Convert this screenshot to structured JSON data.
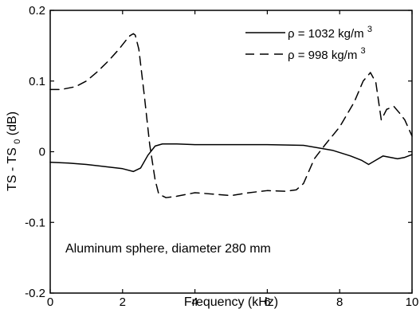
{
  "chart_data": {
    "type": "line",
    "title": "",
    "xlabel": "Frequency (kHz)",
    "ylabel": {
      "part1": "TS - TS",
      "subscript": "0",
      "part2": " (dB)"
    },
    "xlim": [
      0,
      10
    ],
    "ylim": [
      -0.2,
      0.2
    ],
    "xticks": [
      0,
      2,
      4,
      6,
      8,
      10
    ],
    "yticks": [
      -0.2,
      -0.1,
      0,
      0.1,
      0.2
    ],
    "xtick_labels": [
      "0",
      "2",
      "4",
      "6",
      "8",
      "10"
    ],
    "ytick_labels": [
      "-0.2",
      "-0.1",
      "0",
      "0.1",
      "0.2"
    ],
    "grid": false,
    "legend_position": "top-right",
    "series": [
      {
        "name": "ρ = 1032 kg/m3",
        "legend_prefix": "ρ = 1032 kg/m",
        "legend_superscript": "3",
        "style": "solid",
        "color": "#000000",
        "x": [
          0,
          0.5,
          1.0,
          1.5,
          2.0,
          2.3,
          2.5,
          2.7,
          2.9,
          3.1,
          3.5,
          4.0,
          5.0,
          6.0,
          7.0,
          7.8,
          8.3,
          8.6,
          8.8,
          9.0,
          9.2,
          9.4,
          9.6,
          9.8,
          10.0
        ],
        "y": [
          -0.015,
          -0.016,
          -0.018,
          -0.021,
          -0.024,
          -0.028,
          -0.023,
          -0.005,
          0.008,
          0.011,
          0.011,
          0.01,
          0.01,
          0.01,
          0.009,
          0.002,
          -0.006,
          -0.012,
          -0.018,
          -0.012,
          -0.006,
          -0.008,
          -0.01,
          -0.008,
          -0.004
        ]
      },
      {
        "name": "ρ = 998 kg/m3",
        "legend_prefix": "ρ = 998 kg/m",
        "legend_superscript": "3",
        "style": "dashed",
        "color": "#000000",
        "x": [
          0,
          0.3,
          0.7,
          1.0,
          1.3,
          1.6,
          1.9,
          2.1,
          2.2,
          2.3,
          2.35,
          2.45,
          2.6,
          2.75,
          2.9,
          3.0,
          3.2,
          3.5,
          4.0,
          4.5,
          5.0,
          5.5,
          6.0,
          6.5,
          6.8,
          7.0,
          7.3,
          7.6,
          8.0,
          8.4,
          8.65,
          8.85,
          9.0,
          9.15,
          9.3,
          9.5,
          9.65,
          9.8,
          10.0
        ],
        "y": [
          0.088,
          0.088,
          0.092,
          0.1,
          0.113,
          0.128,
          0.145,
          0.158,
          0.164,
          0.167,
          0.165,
          0.145,
          0.08,
          0.01,
          -0.04,
          -0.06,
          -0.065,
          -0.063,
          -0.058,
          -0.06,
          -0.062,
          -0.058,
          -0.055,
          -0.056,
          -0.054,
          -0.045,
          -0.01,
          0.01,
          0.035,
          0.07,
          0.1,
          0.112,
          0.098,
          0.045,
          0.06,
          0.064,
          0.055,
          0.045,
          0.022
        ]
      }
    ],
    "annotation": "Aluminum sphere, diameter 280 mm"
  }
}
